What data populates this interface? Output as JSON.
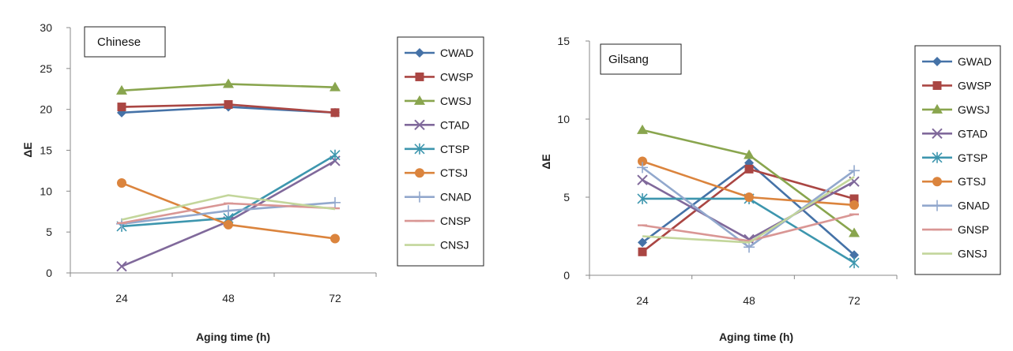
{
  "chart_data": [
    {
      "type": "line",
      "title": "Chinese",
      "xlabel": "Aging time (h)",
      "ylabel": "ΔE",
      "categories": [
        "24",
        "48",
        "72"
      ],
      "ylim": [
        0,
        30
      ],
      "yticks": [
        0,
        5,
        10,
        15,
        20,
        25,
        30
      ],
      "grid": false,
      "legend_position": "right",
      "series": [
        {
          "name": "CWAD",
          "values": [
            19.6,
            20.3,
            19.6
          ],
          "color": "#4572A7",
          "marker": "diamond"
        },
        {
          "name": "CWSP",
          "values": [
            20.3,
            20.6,
            19.6
          ],
          "color": "#AA4643",
          "marker": "square"
        },
        {
          "name": "CWSJ",
          "values": [
            22.3,
            23.1,
            22.7
          ],
          "color": "#89A54E",
          "marker": "triangle"
        },
        {
          "name": "CTAD",
          "values": [
            0.8,
            6.3,
            13.7
          ],
          "color": "#80699B",
          "marker": "x"
        },
        {
          "name": "CTSP",
          "values": [
            5.7,
            6.7,
            14.4
          ],
          "color": "#3D96AE",
          "marker": "star"
        },
        {
          "name": "CTSJ",
          "values": [
            11.0,
            5.9,
            4.2
          ],
          "color": "#DB843D",
          "marker": "circle"
        },
        {
          "name": "CNAD",
          "values": [
            6.0,
            7.6,
            8.6
          ],
          "color": "#92A8CD",
          "marker": "plus"
        },
        {
          "name": "CNSP",
          "values": [
            6.1,
            8.5,
            7.9
          ],
          "color": "#D99694",
          "marker": "dash"
        },
        {
          "name": "CNSJ",
          "values": [
            6.5,
            9.5,
            7.8
          ],
          "color": "#C3D69B",
          "marker": "none"
        }
      ]
    },
    {
      "type": "line",
      "title": "Gilsang",
      "xlabel": "Aging time (h)",
      "ylabel": "ΔE",
      "categories": [
        "24",
        "48",
        "72"
      ],
      "ylim": [
        0,
        15
      ],
      "yticks": [
        0,
        5,
        10,
        15
      ],
      "grid": false,
      "legend_position": "right",
      "series": [
        {
          "name": "GWAD",
          "values": [
            2.1,
            7.2,
            1.3
          ],
          "color": "#4572A7",
          "marker": "diamond"
        },
        {
          "name": "GWSP",
          "values": [
            1.5,
            6.8,
            4.9
          ],
          "color": "#AA4643",
          "marker": "square"
        },
        {
          "name": "GWSJ",
          "values": [
            9.3,
            7.7,
            2.7
          ],
          "color": "#89A54E",
          "marker": "triangle"
        },
        {
          "name": "GTAD",
          "values": [
            6.1,
            2.3,
            6.0
          ],
          "color": "#80699B",
          "marker": "x"
        },
        {
          "name": "GTSP",
          "values": [
            4.9,
            4.9,
            0.8
          ],
          "color": "#3D96AE",
          "marker": "star"
        },
        {
          "name": "GTSJ",
          "values": [
            7.3,
            5.0,
            4.5
          ],
          "color": "#DB843D",
          "marker": "circle"
        },
        {
          "name": "GNAD",
          "values": [
            6.9,
            1.8,
            6.7
          ],
          "color": "#92A8CD",
          "marker": "plus"
        },
        {
          "name": "GNSP",
          "values": [
            3.2,
            2.2,
            3.9
          ],
          "color": "#D99694",
          "marker": "dash"
        },
        {
          "name": "GNSJ",
          "values": [
            2.5,
            2.1,
            6.3
          ],
          "color": "#C3D69B",
          "marker": "none"
        }
      ]
    }
  ]
}
